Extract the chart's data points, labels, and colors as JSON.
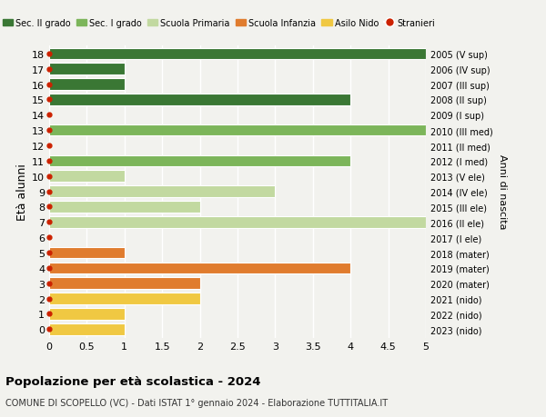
{
  "ages": [
    18,
    17,
    16,
    15,
    14,
    13,
    12,
    11,
    10,
    9,
    8,
    7,
    6,
    5,
    4,
    3,
    2,
    1,
    0
  ],
  "years": [
    "2005 (V sup)",
    "2006 (IV sup)",
    "2007 (III sup)",
    "2008 (II sup)",
    "2009 (I sup)",
    "2010 (III med)",
    "2011 (II med)",
    "2012 (I med)",
    "2013 (V ele)",
    "2014 (IV ele)",
    "2015 (III ele)",
    "2016 (II ele)",
    "2017 (I ele)",
    "2018 (mater)",
    "2019 (mater)",
    "2020 (mater)",
    "2021 (nido)",
    "2022 (nido)",
    "2023 (nido)"
  ],
  "values": [
    5.0,
    1.0,
    1.0,
    4.0,
    0.0,
    5.0,
    0.0,
    4.0,
    1.0,
    3.0,
    2.0,
    5.0,
    0.0,
    1.0,
    4.0,
    2.0,
    2.0,
    1.0,
    1.0
  ],
  "colors": [
    "#3a7734",
    "#3a7734",
    "#3a7734",
    "#3a7734",
    "#3a7734",
    "#7cb55a",
    "#7cb55a",
    "#7cb55a",
    "#c2d9a0",
    "#c2d9a0",
    "#c2d9a0",
    "#c2d9a0",
    "#c2d9a0",
    "#e07c2e",
    "#e07c2e",
    "#e07c2e",
    "#f0c842",
    "#f0c842",
    "#f0c842"
  ],
  "legend_labels": [
    "Sec. II grado",
    "Sec. I grado",
    "Scuola Primaria",
    "Scuola Infanzia",
    "Asilo Nido",
    "Stranieri"
  ],
  "legend_colors": [
    "#3a7734",
    "#7cb55a",
    "#c2d9a0",
    "#e07c2e",
    "#f0c842",
    "#cc2200"
  ],
  "legend_marker_types": [
    "patch",
    "patch",
    "patch",
    "patch",
    "patch",
    "circle"
  ],
  "ylabel_left": "Età alunni",
  "ylabel_right": "Anni di nascita",
  "title": "Popolazione per età scolastica - 2024",
  "subtitle": "COMUNE DI SCOPELLO (VC) - Dati ISTAT 1° gennaio 2024 - Elaborazione TUTTITALIA.IT",
  "xlim": [
    0,
    5.0
  ],
  "xticks": [
    0,
    0.5,
    1.0,
    1.5,
    2.0,
    2.5,
    3.0,
    3.5,
    4.0,
    4.5,
    5.0
  ],
  "bar_height": 0.75,
  "stranieri_color": "#cc2200",
  "bg_color": "#f2f2ee",
  "grid_color": "#ffffff"
}
